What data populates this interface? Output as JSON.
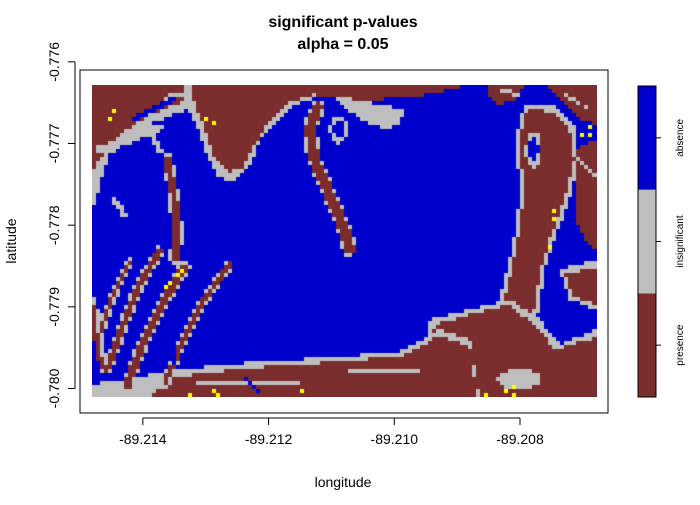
{
  "chart_data": {
    "type": "heatmap",
    "title": "significant p-values",
    "subtitle": "alpha = 0.05",
    "xlabel": "longitude",
    "ylabel": "latitude",
    "xlim": [
      -89.215,
      -89.2066
    ],
    "ylim": [
      -0.7803,
      -0.7761
    ],
    "x_ticks": [
      -89.214,
      -89.212,
      -89.21,
      -89.208
    ],
    "x_tick_labels": [
      "-89.214",
      "-89.212",
      "-89.210",
      "-89.208"
    ],
    "y_ticks": [
      -0.78,
      -0.779,
      -0.778,
      -0.777,
      -0.776
    ],
    "y_tick_labels": [
      "-0.780",
      "-0.779",
      "-0.778",
      "-0.777",
      "-0.776"
    ],
    "grid": false,
    "legend_position": "right",
    "classes": [
      {
        "label": "presence",
        "color": "#7b2c2c"
      },
      {
        "label": "insignificant",
        "color": "#bebebe"
      },
      {
        "label": "absence",
        "color": "#0000cd"
      }
    ],
    "highlight_color": "#ffff00"
  }
}
